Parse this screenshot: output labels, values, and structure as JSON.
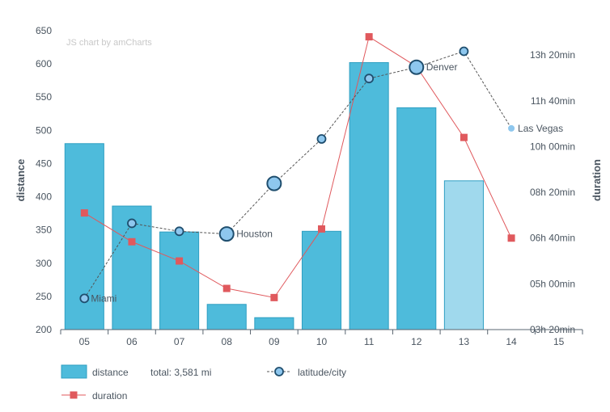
{
  "credit": "JS chart by amCharts",
  "chart_data": {
    "type": "bar",
    "categories": [
      "05",
      "06",
      "07",
      "08",
      "09",
      "10",
      "11",
      "12",
      "13",
      "14",
      "15"
    ],
    "bar_series": {
      "name": "distance",
      "values": [
        480,
        386,
        347,
        238,
        218,
        348,
        602,
        534,
        424,
        null,
        null
      ],
      "color": "#4ebbdb",
      "highlight_index": 8,
      "highlight_color": "#a0d9ed"
    },
    "line_series_latitude": {
      "name": "latitude/city",
      "values": [
        247,
        360,
        348,
        344,
        420,
        487,
        578,
        595,
        619,
        503,
        null
      ],
      "color": "#4a4a4a",
      "cities": [
        "Miami",
        "",
        "",
        "Houston",
        "",
        "",
        "",
        "Denver",
        "",
        "Las Vegas",
        ""
      ],
      "large_marker_indices": [
        3,
        4,
        7
      ]
    },
    "line_series_duration": {
      "name": "duration",
      "values": [
        "07h 35min",
        "06h 32min",
        "05h 50min",
        "04h 50min",
        "04h 30min",
        "07h 00min",
        "14h 00min",
        "12h 55min",
        "10h 20min",
        "06h 40min",
        null
      ],
      "color": "#e0595d"
    },
    "y_left": {
      "title": "distance",
      "min": 200,
      "max": 650,
      "ticks": [
        "200",
        "250",
        "300",
        "350",
        "400",
        "450",
        "500",
        "550",
        "600",
        "650"
      ]
    },
    "y_right": {
      "title": "duration",
      "ticks": [
        "03h 20min",
        "05h 00min",
        "06h 40min",
        "08h 20min",
        "10h 00min",
        "11h 40min",
        "13h 20min"
      ]
    },
    "legend": {
      "distance_label": "distance",
      "total_label": "total: 3,581 mi",
      "latitude_label": "latitude/city",
      "duration_label": "duration"
    },
    "grid": false
  }
}
